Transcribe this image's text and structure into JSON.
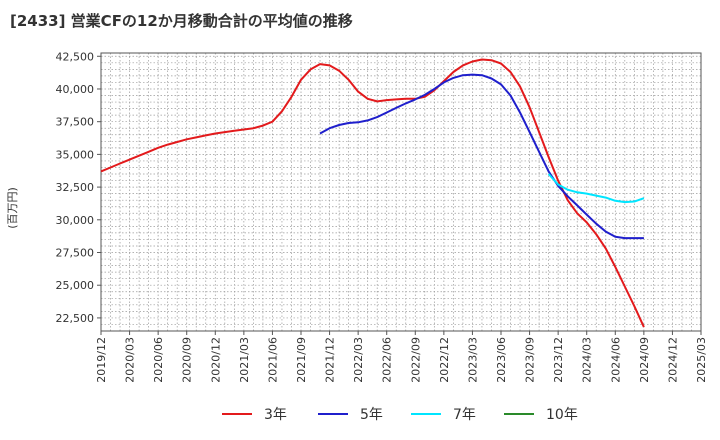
{
  "title": "[2433]  営業CFの12か月移動合計の平均値の推移",
  "chart_data": {
    "type": "line",
    "ylabel": "(百万円)",
    "ylim": [
      21500,
      42750
    ],
    "yticks": [
      22500,
      25000,
      27500,
      30000,
      32500,
      35000,
      37500,
      40000,
      42500
    ],
    "ytick_labels": [
      "22,500",
      "25,000",
      "27,500",
      "30,000",
      "32,500",
      "35,000",
      "37,500",
      "40,000",
      "42,500"
    ],
    "xrange": [
      "2019/12",
      "2025/03"
    ],
    "xtick_labels": [
      "2019/12",
      "2020/03",
      "2020/06",
      "2020/09",
      "2020/12",
      "2021/03",
      "2021/06",
      "2021/09",
      "2021/12",
      "2022/03",
      "2022/06",
      "2022/09",
      "2022/12",
      "2023/03",
      "2023/06",
      "2023/09",
      "2023/12",
      "2024/03",
      "2024/06",
      "2024/09",
      "2024/12",
      "2025/03"
    ],
    "grid": true,
    "legend_position": "bottom",
    "series": [
      {
        "name": "3年",
        "color": "#e31a1c",
        "x": [
          "2019/12",
          "2020/01",
          "2020/02",
          "2020/03",
          "2020/04",
          "2020/05",
          "2020/06",
          "2020/07",
          "2020/08",
          "2020/09",
          "2020/10",
          "2020/11",
          "2020/12",
          "2021/01",
          "2021/02",
          "2021/03",
          "2021/04",
          "2021/05",
          "2021/06",
          "2021/07",
          "2021/08",
          "2021/09",
          "2021/10",
          "2021/11",
          "2021/12",
          "2022/01",
          "2022/02",
          "2022/03",
          "2022/04",
          "2022/05",
          "2022/06",
          "2022/07",
          "2022/08",
          "2022/09",
          "2022/10",
          "2022/11",
          "2022/12",
          "2023/01",
          "2023/02",
          "2023/03",
          "2023/04",
          "2023/05",
          "2023/06",
          "2023/07",
          "2023/08",
          "2023/09",
          "2023/10",
          "2023/11",
          "2023/12",
          "2024/01",
          "2024/02",
          "2024/03",
          "2024/04",
          "2024/05",
          "2024/06",
          "2024/07",
          "2024/08",
          "2024/09"
        ],
        "values": [
          33700,
          34000,
          34300,
          34600,
          34900,
          35200,
          35500,
          35750,
          35950,
          36150,
          36300,
          36450,
          36600,
          36700,
          36800,
          36900,
          37000,
          37200,
          37500,
          38300,
          39400,
          40700,
          41500,
          41900,
          41800,
          41400,
          40700,
          39800,
          39250,
          39050,
          39150,
          39200,
          39250,
          39250,
          39400,
          39900,
          40600,
          41300,
          41800,
          42100,
          42250,
          42200,
          41950,
          41300,
          40200,
          38600,
          36700,
          34800,
          33000,
          31500,
          30500,
          29800,
          28900,
          27800,
          26400,
          24900,
          23400,
          21800
        ]
      },
      {
        "name": "5年",
        "color": "#1f1fcc",
        "x": [
          "2021/11",
          "2021/12",
          "2022/01",
          "2022/02",
          "2022/03",
          "2022/04",
          "2022/05",
          "2022/06",
          "2022/07",
          "2022/08",
          "2022/09",
          "2022/10",
          "2022/11",
          "2022/12",
          "2023/01",
          "2023/02",
          "2023/03",
          "2023/04",
          "2023/05",
          "2023/06",
          "2023/07",
          "2023/08",
          "2023/09",
          "2023/10",
          "2023/11",
          "2023/12",
          "2024/01",
          "2024/02",
          "2024/03",
          "2024/04",
          "2024/05",
          "2024/06",
          "2024/07",
          "2024/08",
          "2024/09"
        ],
        "values": [
          36600,
          37000,
          37250,
          37400,
          37450,
          37600,
          37850,
          38200,
          38550,
          38900,
          39200,
          39550,
          40000,
          40500,
          40850,
          41050,
          41100,
          41050,
          40800,
          40350,
          39500,
          38200,
          36700,
          35200,
          33700,
          32600,
          31800,
          31100,
          30400,
          29700,
          29100,
          28700,
          28600,
          28600,
          28600
        ]
      },
      {
        "name": "7年",
        "color": "#00e5ff",
        "x": [
          "2023/11",
          "2023/12",
          "2024/01",
          "2024/02",
          "2024/03",
          "2024/04",
          "2024/05",
          "2024/06",
          "2024/07",
          "2024/08",
          "2024/09"
        ],
        "values": [
          33500,
          32700,
          32300,
          32100,
          32000,
          31850,
          31700,
          31450,
          31350,
          31400,
          31650
        ]
      },
      {
        "name": "10年",
        "color": "#2a8a2a",
        "x": [],
        "values": []
      }
    ]
  }
}
